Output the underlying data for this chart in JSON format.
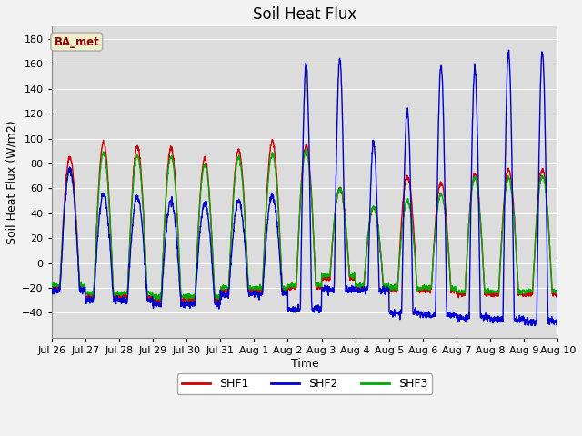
{
  "title": "Soil Heat Flux",
  "xlabel": "Time",
  "ylabel": "Soil Heat Flux (W/m2)",
  "ylim": [
    -60,
    190
  ],
  "yticks": [
    -40,
    -20,
    0,
    20,
    40,
    60,
    80,
    100,
    120,
    140,
    160,
    180
  ],
  "legend_labels": [
    "SHF1",
    "SHF2",
    "SHF3"
  ],
  "line_colors": [
    "#cc0000",
    "#0000cc",
    "#00aa00"
  ],
  "ba_met_label": "BA_met",
  "ba_met_fgcolor": "#880000",
  "ba_met_bgcolor": "#eeeecc",
  "plot_bgcolor": "#dcdcdc",
  "fig_bgcolor": "#f2f2f2",
  "grid_color": "#ffffff",
  "title_fontsize": 12,
  "axis_label_fontsize": 9,
  "tick_fontsize": 8,
  "day_labels": [
    "Jul 26",
    "Jul 27",
    "Jul 28",
    "Jul 29",
    "Jul 30",
    "Jul 31",
    "Aug 1",
    "Aug 2",
    "Aug 3",
    "Aug 4",
    "Aug 5",
    "Aug 6",
    "Aug 7",
    "Aug 8",
    "Aug 9",
    "Aug 10"
  ],
  "shf1_peaks": [
    85,
    97,
    94,
    93,
    84,
    91,
    98,
    95,
    60,
    45,
    70,
    65,
    72,
    75,
    75,
    72
  ],
  "shf2_peaks": [
    75,
    55,
    53,
    50,
    48,
    50,
    54,
    161,
    163,
    97,
    122,
    160,
    155,
    169,
    170,
    170
  ],
  "shf3_peaks": [
    75,
    89,
    86,
    86,
    79,
    85,
    88,
    90,
    60,
    45,
    50,
    55,
    68,
    68,
    70,
    68
  ],
  "shf1_nights": [
    -20,
    -27,
    -27,
    -30,
    -30,
    -22,
    -22,
    -20,
    -12,
    -20,
    -22,
    -22,
    -25,
    -25,
    -25,
    -25
  ],
  "shf2_nights": [
    -22,
    -30,
    -30,
    -33,
    -33,
    -25,
    -25,
    -37,
    -21,
    -22,
    -40,
    -42,
    -44,
    -45,
    -47,
    -45
  ],
  "shf3_nights": [
    -18,
    -24,
    -24,
    -27,
    -27,
    -20,
    -20,
    -18,
    -10,
    -18,
    -20,
    -20,
    -23,
    -23,
    -23,
    -23
  ]
}
